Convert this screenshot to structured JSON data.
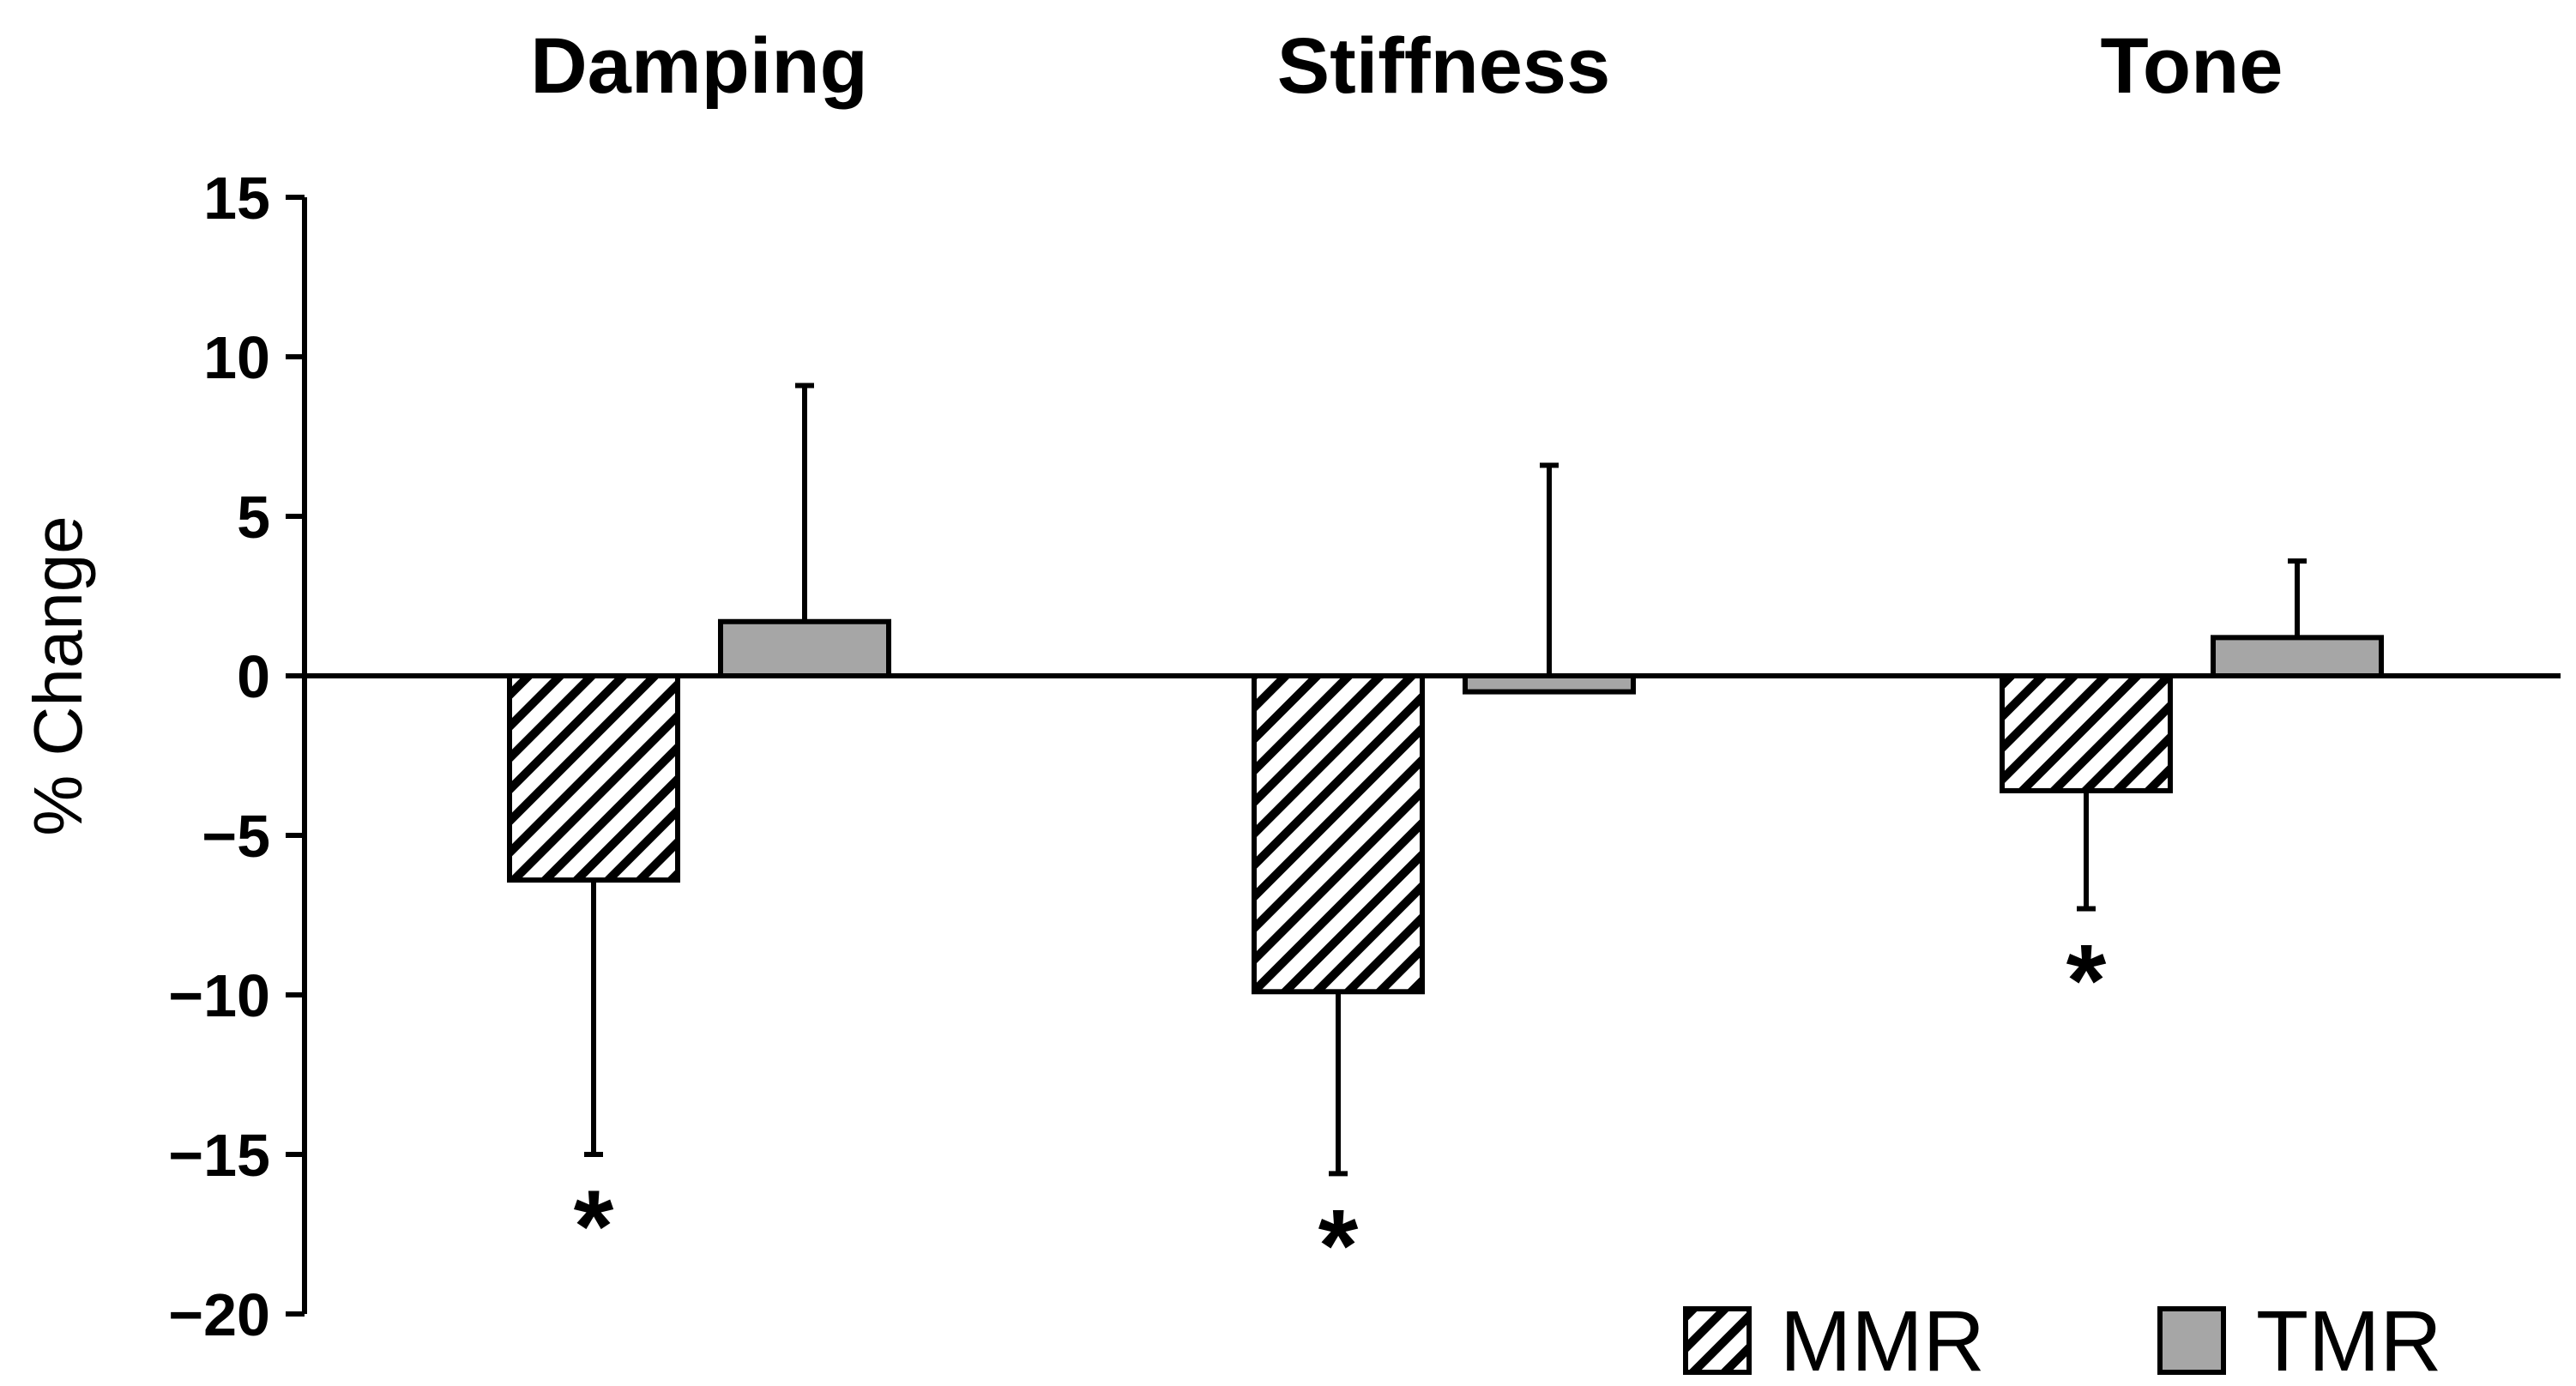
{
  "chart_data": {
    "type": "bar",
    "categories": [
      "Damping",
      "Stiffness",
      "Tone"
    ],
    "ylabel": "% Change",
    "ylim": [
      -20,
      15
    ],
    "yticks": [
      15,
      10,
      5,
      0,
      -5,
      -10,
      -15,
      -20
    ],
    "ytick_labels": [
      "15",
      "10",
      "5",
      "0",
      "−5",
      "−10",
      "−15",
      "−20"
    ],
    "series": [
      {
        "name": "MMR",
        "pattern": "diagonal-hatch",
        "values": [
          -6.4,
          -9.9,
          -3.6
        ],
        "error": [
          8.6,
          5.7,
          3.7
        ],
        "error_direction": "down",
        "significance": [
          "*",
          "*",
          "*"
        ]
      },
      {
        "name": "TMR",
        "color": "#a6a6a6",
        "values": [
          1.7,
          -0.5,
          1.2
        ],
        "error": [
          7.4,
          7.1,
          2.4
        ],
        "error_direction": "up",
        "significance": [
          "",
          "",
          ""
        ]
      }
    ],
    "legend_position": "bottom-right",
    "grid": false
  }
}
